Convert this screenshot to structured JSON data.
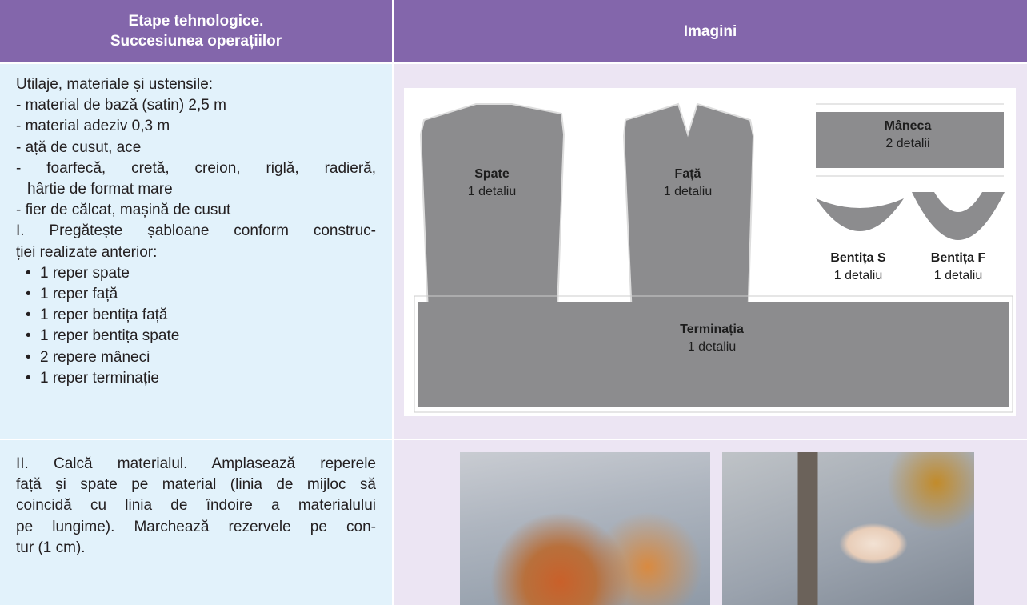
{
  "table": {
    "header": [
      [
        "Etape tehnologice.",
        "Succesiunea operațiilor"
      ],
      [
        "Imagini"
      ]
    ],
    "rows": [
      {
        "left": {
          "title": "Utilaje, materiale și ustensile:",
          "items": [
            [
              "- material de bază (satin) 2,5 m"
            ],
            [
              "- material adeziv 0,3 m"
            ],
            [
              "- ață de cusut, ace"
            ],
            [
              "- foarfecă, cretă, creion, riglă, radieră,",
              "hârtie de format mare"
            ],
            [
              "- fier de călcat, mașină de cusut"
            ]
          ],
          "step": [
            "I. Pregătește șabloane conform construc-",
            "ției realizate anterior:"
          ],
          "bullets": [
            "1 reper spate",
            "1 reper față",
            "1 reper bentița față",
            "1 reper bentița spate",
            "2 repere mâneci",
            "1 reper terminație"
          ]
        },
        "pieces": [
          {
            "name": "Spate",
            "count": "1 detaliu"
          },
          {
            "name": "Față",
            "count": "1 detaliu"
          },
          {
            "name": "Mâneca",
            "count": "2 detalii"
          },
          {
            "name": "Bentița S",
            "count": "1 detaliu"
          },
          {
            "name": "Bentița F",
            "count": "1 detaliu"
          },
          {
            "name": "Terminația",
            "count": "1 detaliu"
          }
        ]
      },
      {
        "left": {
          "lines": [
            "II. Calcă materialul. Amplasează reperele",
            "față și spate pe material (linia de mijloc să",
            "coincidă cu linia de îndoire a materialului",
            "pe lungime). Marchează rezervele pe con-",
            "tur (1 cm)."
          ]
        }
      }
    ]
  }
}
